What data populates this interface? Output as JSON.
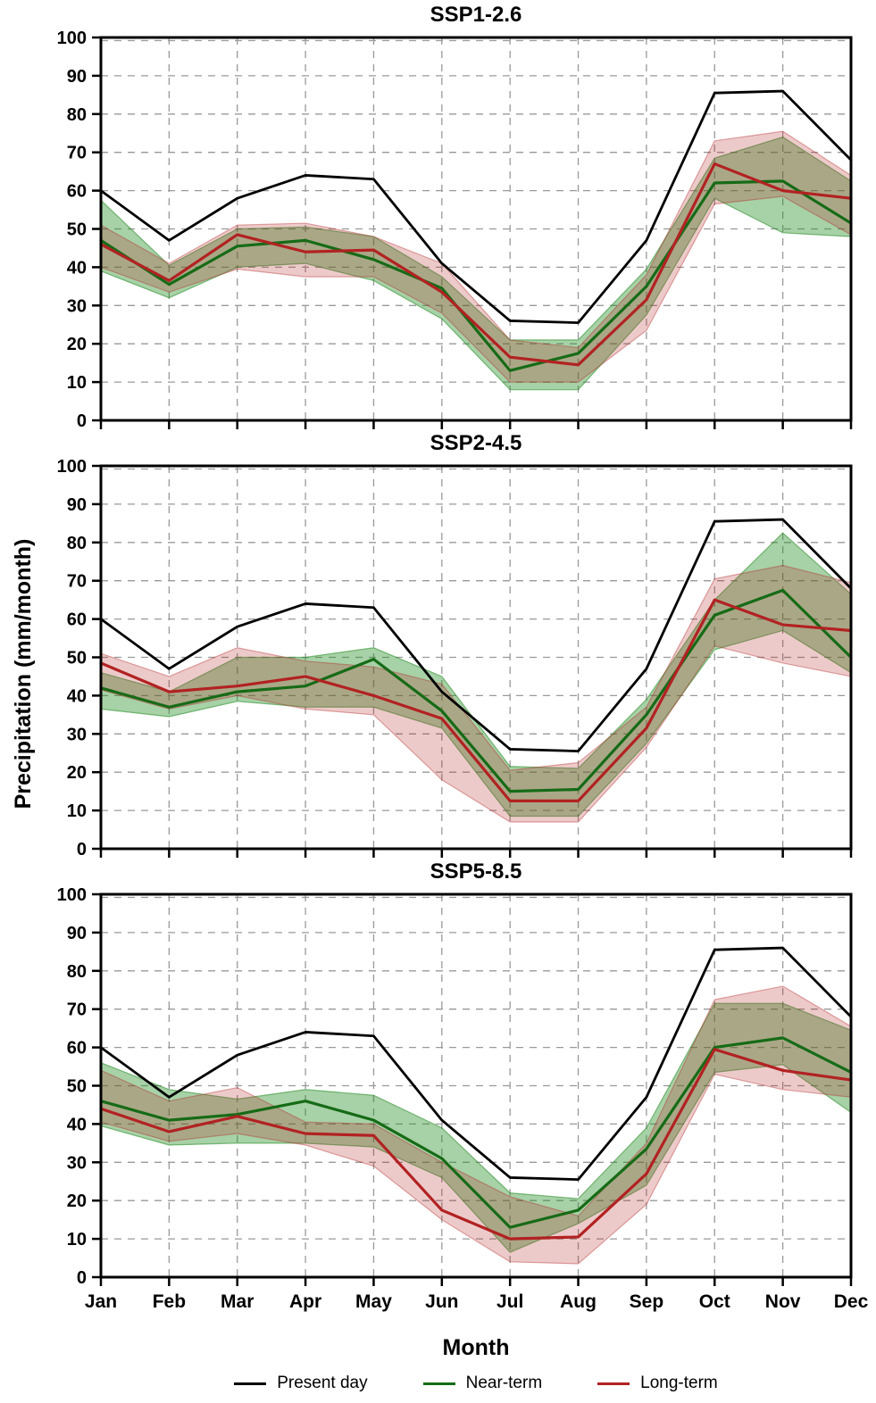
{
  "page": {
    "ylabel": "Precipitation (mm/month)",
    "xlabel": "Month"
  },
  "legend": [
    {
      "label": "Present day",
      "color": "#000000"
    },
    {
      "label": "Near-term",
      "color": "#166b16"
    },
    {
      "label": "Long-term",
      "color": "#b22222"
    }
  ],
  "axes": {
    "months": [
      "Jan",
      "Feb",
      "Mar",
      "Apr",
      "May",
      "Jun",
      "Jul",
      "Aug",
      "Sep",
      "Oct",
      "Nov",
      "Dec"
    ],
    "yticks": [
      0,
      10,
      20,
      30,
      40,
      50,
      60,
      70,
      80,
      90,
      100
    ],
    "ylim": [
      0,
      100
    ],
    "grid": "dashed"
  },
  "colors": {
    "present_line": "#000000",
    "near_line": "#166b16",
    "long_line": "#b22222",
    "near_band_fill": "#228b22",
    "near_band_opacity": 0.4,
    "long_band_fill": "#b22222",
    "long_band_opacity": 0.24,
    "grid": "#999999",
    "axis": "#000000"
  },
  "chart_data": [
    {
      "type": "line",
      "title": "SSP1-2.6",
      "ylim": [
        0,
        100
      ],
      "series": [
        {
          "name": "Present day",
          "values": [
            60,
            47,
            58,
            64,
            63,
            41,
            26,
            25.5,
            47,
            85.5,
            86,
            68
          ]
        },
        {
          "name": "Near-term",
          "values": [
            47,
            35.5,
            45.5,
            47,
            42,
            34.5,
            13,
            17.5,
            35,
            62,
            62.5,
            51.5
          ],
          "band_lo": [
            39,
            32,
            40,
            41,
            36.5,
            26.5,
            8,
            8,
            27.5,
            58,
            49,
            48
          ],
          "band_hi": [
            57.5,
            40.5,
            50,
            50.5,
            48,
            37.5,
            21,
            21,
            39.5,
            68.5,
            74,
            62.5
          ]
        },
        {
          "name": "Long-term",
          "values": [
            46,
            36.5,
            48.5,
            44,
            44.5,
            33.5,
            16.5,
            14.5,
            31.5,
            67,
            60,
            58
          ],
          "band_lo": [
            40,
            33.5,
            39.5,
            37.5,
            37.5,
            28,
            10,
            10,
            23.5,
            56.5,
            58.5,
            48.5
          ],
          "band_hi": [
            51,
            41,
            51,
            51.5,
            48,
            41,
            21,
            19,
            38,
            73,
            75.5,
            64
          ]
        }
      ]
    },
    {
      "type": "line",
      "title": "SSP2-4.5",
      "ylim": [
        0,
        100
      ],
      "series": [
        {
          "name": "Present day",
          "values": [
            60,
            47,
            58,
            64,
            63,
            41,
            26,
            25.5,
            47,
            85.5,
            86,
            68
          ]
        },
        {
          "name": "Near-term",
          "values": [
            42,
            37,
            41,
            42.5,
            49.5,
            36,
            15,
            15.5,
            35,
            61,
            67.5,
            50
          ],
          "band_lo": [
            36.5,
            34.5,
            38.5,
            37,
            37,
            31.5,
            8.5,
            8.5,
            27.5,
            52,
            57,
            46
          ],
          "band_hi": [
            46,
            41,
            50,
            50,
            52.5,
            45,
            21.5,
            21,
            39,
            65,
            82.5,
            66.5
          ]
        },
        {
          "name": "Long-term",
          "values": [
            48.5,
            41,
            42.5,
            45,
            40,
            34,
            12.5,
            12.5,
            31.5,
            65,
            58.5,
            57
          ],
          "band_lo": [
            41.5,
            36.5,
            40,
            36.5,
            35,
            18,
            7,
            7,
            26.5,
            53,
            48.5,
            45
          ],
          "band_hi": [
            51,
            45,
            52.5,
            49,
            47.5,
            43,
            20.5,
            22.5,
            37,
            70.5,
            74,
            69.5
          ]
        }
      ]
    },
    {
      "type": "line",
      "title": "SSP5-8.5",
      "ylim": [
        0,
        100
      ],
      "series": [
        {
          "name": "Present day",
          "values": [
            60,
            47,
            58,
            64,
            63,
            41,
            26,
            25.5,
            47,
            85.5,
            86,
            68
          ]
        },
        {
          "name": "Near-term",
          "values": [
            46,
            41,
            42.5,
            46,
            41,
            31,
            13,
            17.5,
            33.5,
            60,
            62.5,
            53.5
          ],
          "band_lo": [
            39.5,
            34.5,
            35,
            35,
            34,
            26,
            6.5,
            14,
            24,
            53.5,
            55.5,
            43
          ],
          "band_hi": [
            56,
            49,
            46.5,
            49,
            47.5,
            39,
            22,
            20.5,
            39,
            71.5,
            71.5,
            64.5
          ]
        },
        {
          "name": "Long-term",
          "values": [
            44,
            38,
            42,
            37.5,
            37,
            17.5,
            10,
            10.5,
            27,
            59.5,
            54,
            51.5
          ],
          "band_lo": [
            40.5,
            35.5,
            37.5,
            34.5,
            29,
            15,
            4,
            3.5,
            19,
            53,
            49,
            47
          ],
          "band_hi": [
            54,
            46,
            49.5,
            40.5,
            40,
            30,
            21,
            16,
            35,
            72.5,
            76,
            65.5
          ]
        }
      ]
    }
  ]
}
